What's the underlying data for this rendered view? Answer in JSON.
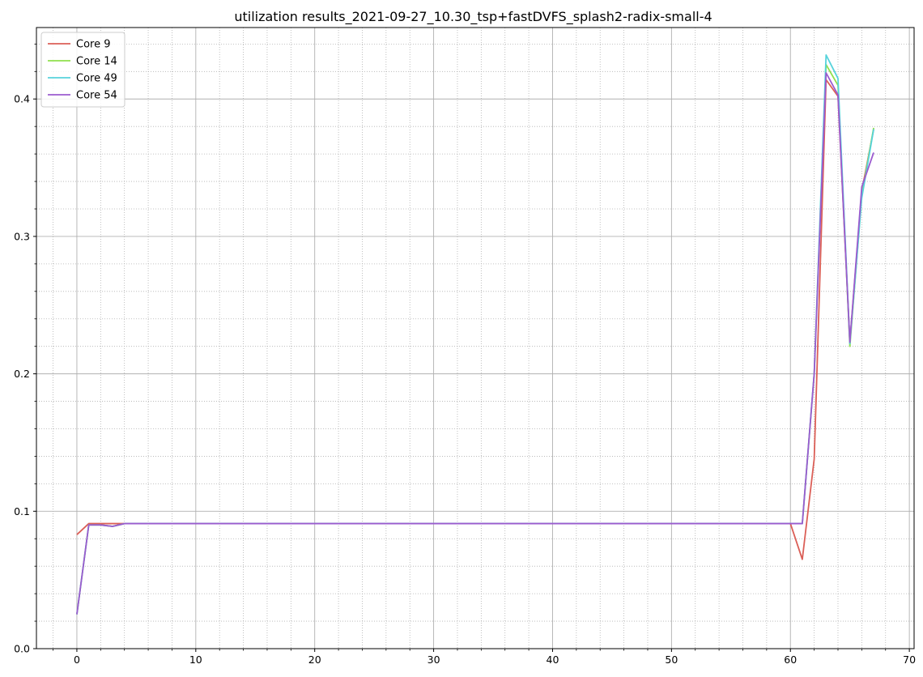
{
  "chart_data": {
    "type": "line",
    "title": "utilization results_2021-09-27_10.30_tsp+fastDVFS_splash2-radix-small-4",
    "xlabel": "",
    "ylabel": "",
    "xlim": [
      -3.4,
      70.4
    ],
    "ylim": [
      0.0,
      0.452
    ],
    "x_ticks": [
      0,
      10,
      20,
      30,
      40,
      50,
      60,
      70
    ],
    "y_ticks": [
      0.0,
      0.1,
      0.2,
      0.3,
      0.4
    ],
    "x_tick_labels": [
      "0",
      "10",
      "20",
      "30",
      "40",
      "50",
      "60",
      "70"
    ],
    "y_tick_labels": [
      "0.0",
      "0.1",
      "0.2",
      "0.3",
      "0.4"
    ],
    "x_minor_step": 2,
    "y_minor_step": 0.02,
    "grid": "major solid, minor dotted",
    "legend_position": "top-left",
    "series": [
      {
        "name": "Core 9",
        "color": "#db5f57",
        "points": [
          [
            0,
            0.083
          ],
          [
            1,
            0.091
          ],
          [
            2,
            0.091
          ],
          [
            3,
            0.091
          ],
          [
            4,
            0.091
          ],
          [
            60,
            0.091
          ],
          [
            61,
            0.065
          ],
          [
            62,
            0.138
          ],
          [
            63,
            0.414
          ],
          [
            64,
            0.402
          ],
          [
            65,
            0.223
          ],
          [
            66,
            0.333
          ],
          [
            67,
            0.378
          ]
        ]
      },
      {
        "name": "Core 14",
        "color": "#91e04d",
        "points": [
          [
            0,
            0.025
          ],
          [
            1,
            0.09
          ],
          [
            2,
            0.09
          ],
          [
            3,
            0.089
          ],
          [
            4,
            0.091
          ],
          [
            60,
            0.091
          ],
          [
            61,
            0.091
          ],
          [
            62,
            0.2
          ],
          [
            63,
            0.425
          ],
          [
            64,
            0.41
          ],
          [
            65,
            0.22
          ],
          [
            66,
            0.33
          ],
          [
            67,
            0.379
          ]
        ]
      },
      {
        "name": "Core 49",
        "color": "#57d3db",
        "points": [
          [
            0,
            0.025
          ],
          [
            1,
            0.09
          ],
          [
            2,
            0.09
          ],
          [
            3,
            0.089
          ],
          [
            4,
            0.091
          ],
          [
            60,
            0.091
          ],
          [
            61,
            0.091
          ],
          [
            62,
            0.2
          ],
          [
            63,
            0.432
          ],
          [
            64,
            0.415
          ],
          [
            65,
            0.222
          ],
          [
            66,
            0.328
          ],
          [
            67,
            0.378
          ]
        ]
      },
      {
        "name": "Core 54",
        "color": "#9b5bcf",
        "points": [
          [
            0,
            0.025
          ],
          [
            1,
            0.09
          ],
          [
            2,
            0.09
          ],
          [
            3,
            0.089
          ],
          [
            4,
            0.091
          ],
          [
            60,
            0.091
          ],
          [
            61,
            0.091
          ],
          [
            62,
            0.2
          ],
          [
            63,
            0.419
          ],
          [
            64,
            0.403
          ],
          [
            65,
            0.223
          ],
          [
            66,
            0.336
          ],
          [
            67,
            0.361
          ]
        ]
      }
    ]
  }
}
